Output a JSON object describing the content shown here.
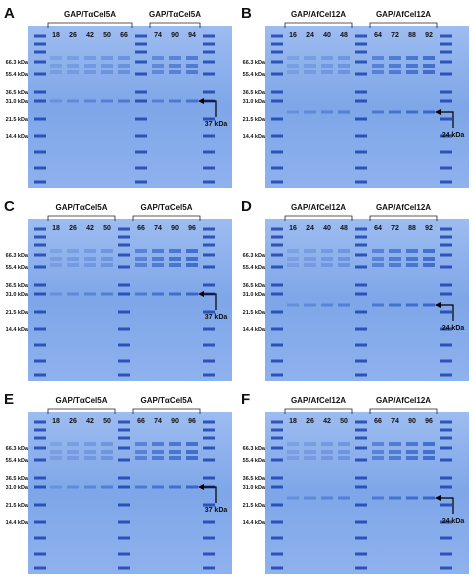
{
  "panels": [
    {
      "letter": "A",
      "groups": [
        {
          "label": "GAP/TαCel5A",
          "lanes": [
            "18",
            "26",
            "42",
            "50",
            "66"
          ]
        },
        {
          "label": "GAP/TαCel5A",
          "lanes": [
            "74",
            "90",
            "94"
          ]
        }
      ],
      "markers": [
        "66.3 kDa",
        "55.4 kDa",
        "36.5 kDa",
        "31.0 kDa",
        "21.5 kDa",
        "14.4 kDa"
      ],
      "arrow_label": "37 kDa"
    },
    {
      "letter": "B",
      "groups": [
        {
          "label": "GAP/AfCel12A",
          "lanes": [
            "16",
            "24",
            "40",
            "48"
          ]
        },
        {
          "label": "GAP/AfCel12A",
          "lanes": [
            "64",
            "72",
            "88",
            "92"
          ]
        }
      ],
      "markers": [
        "66.3 kDa",
        "55.4 kDa",
        "36.5 kDa",
        "31.0 kDa",
        "21.5 kDa",
        "14.4 kDa"
      ],
      "arrow_label": "24 kDa"
    },
    {
      "letter": "C",
      "groups": [
        {
          "label": "GAP/TαCel5A",
          "lanes": [
            "18",
            "26",
            "42",
            "50"
          ]
        },
        {
          "label": "GAP/TαCel5A",
          "lanes": [
            "66",
            "74",
            "90",
            "96"
          ]
        }
      ],
      "markers": [
        "66.3 kDa",
        "55.4 kDa",
        "36.5 kDa",
        "31.0 kDa",
        "21.5 kDa",
        "14.4 kDa"
      ],
      "arrow_label": "37 kDa"
    },
    {
      "letter": "D",
      "groups": [
        {
          "label": "GAP/AfCel12A",
          "lanes": [
            "16",
            "24",
            "40",
            "48"
          ]
        },
        {
          "label": "GAP/AfCel12A",
          "lanes": [
            "64",
            "72",
            "88",
            "92"
          ]
        }
      ],
      "markers": [
        "66.3 kDa",
        "55.4 kDa",
        "36.5 kDa",
        "31.0 kDa",
        "21.5 kDa",
        "14.4 kDa"
      ],
      "arrow_label": "24 kDa"
    },
    {
      "letter": "E",
      "groups": [
        {
          "label": "GAP/TαCel5A",
          "lanes": [
            "18",
            "26",
            "42",
            "50"
          ]
        },
        {
          "label": "GAP/TαCel5A",
          "lanes": [
            "66",
            "74",
            "90",
            "96"
          ]
        }
      ],
      "markers": [
        "66.3 kDa",
        "55.4 kDa",
        "36.5 kDa",
        "31.0 kDa",
        "21.5 kDa",
        "14.4 kDa"
      ],
      "arrow_label": "37 kDa"
    },
    {
      "letter": "F",
      "groups": [
        {
          "label": "GAP/AfCel12A",
          "lanes": [
            "18",
            "26",
            "42",
            "50"
          ]
        },
        {
          "label": "GAP/AfCel12A",
          "lanes": [
            "66",
            "74",
            "90",
            "96"
          ]
        }
      ],
      "markers": [
        "66.3 kDa",
        "55.4 kDa",
        "36.5 kDa",
        "31.0 kDa",
        "21.5 kDa",
        "14.4 kDa"
      ],
      "arrow_label": "24 kDa"
    }
  ]
}
